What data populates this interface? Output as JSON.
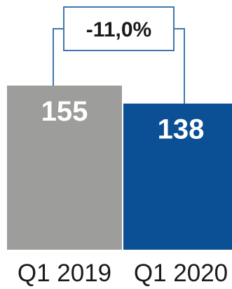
{
  "chart_data": {
    "type": "bar",
    "categories": [
      "Q1 2019",
      "Q1 2020"
    ],
    "values": [
      155,
      138
    ],
    "value_labels": [
      "155",
      "138"
    ],
    "change_label": "-11,0%",
    "title": "",
    "xlabel": "",
    "ylabel": "",
    "ylim": [
      0,
      155
    ],
    "grid": false,
    "legend": "none",
    "colors": {
      "bars": [
        "#9d9d9b",
        "#0b4f94"
      ],
      "connector": "#3f78ad"
    }
  }
}
